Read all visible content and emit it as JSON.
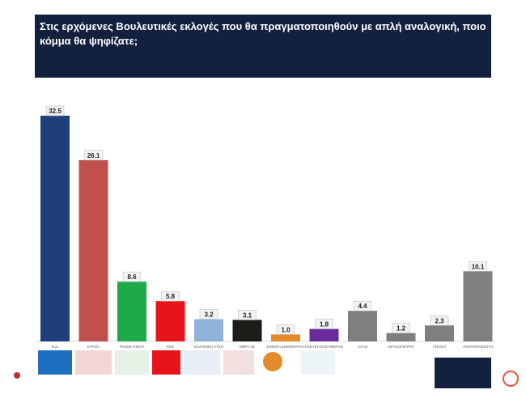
{
  "chart_data": {
    "type": "bar",
    "title": "Στις ερχόμενες Βουλευτικές εκλογές που θα πραγματοποιηθούν με απλή αναλογική, ποιο κόμμα θα ψηφίζατε;",
    "categories": [
      "Ν.Δ.",
      "ΣΥΡΙΖΑ",
      "ΠΑΣΟΚ-ΚΙΝΑΛ",
      "ΚΚΕ",
      "ΕΛΛΗΝΙΚΗ ΛΥΣΗ",
      "ΜΕΡΑ 25",
      "ΕΘΝΙΚΗ ΔΗΜΟΚΡΑΤΙΑ",
      "ΠΛΕΥΣΗ ΕΛΕΥΘΕΡΙΑΣ",
      "ΑΛΛΟ",
      "ΛΕΥΚΟ/ΑΚΥΡΟ",
      "ΑΠΟΧΗ",
      "ΑΝΑΠΟΦΑΣΙΣΤΟΙ"
    ],
    "values": [
      32.5,
      26.1,
      8.6,
      5.8,
      3.2,
      3.1,
      1.0,
      1.8,
      4.4,
      1.2,
      2.3,
      10.1
    ],
    "value_labels": [
      "32.5",
      "26.1",
      "8.6",
      "5.8",
      "3.2",
      "3.1",
      "1.0",
      "1.8",
      "4.4",
      "1.2",
      "2.3",
      "10.1"
    ],
    "colors": [
      "#1f3f7a",
      "#c0504d",
      "#1ea94a",
      "#e8141b",
      "#8fb2d9",
      "#1e1c18",
      "#e38a2b",
      "#6a2c9a",
      "#7f7f7f",
      "#7f7f7f",
      "#7f7f7f",
      "#7f7f7f"
    ]
  }
}
